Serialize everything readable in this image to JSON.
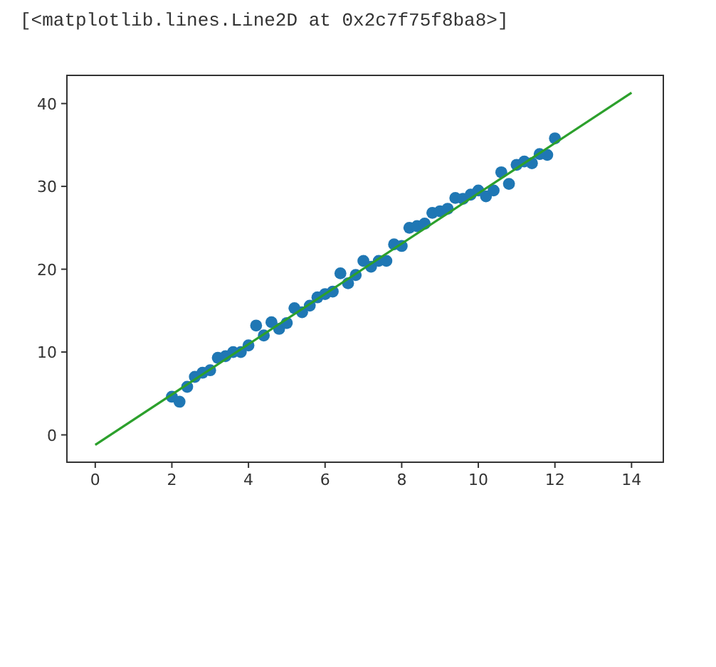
{
  "chart_data": {
    "type": "scatter",
    "annotations": [
      "[<matplotlib.lines.Line2D at 0x2c7f75f8ba8>]"
    ],
    "xlim": [
      -0.74,
      14.83
    ],
    "ylim": [
      -3.3,
      43.4
    ],
    "xticks": [
      0,
      2,
      4,
      6,
      8,
      10,
      12,
      14
    ],
    "yticks": [
      0,
      10,
      20,
      30,
      40
    ],
    "marker": "circle",
    "grid": false,
    "series": [
      {
        "color": "#1f77b4",
        "x": [
          2.0,
          2.2,
          2.4,
          2.6,
          2.8,
          3.0,
          3.2,
          3.4,
          3.6,
          3.8,
          4.0,
          4.2,
          4.4,
          4.6,
          4.8,
          5.0,
          5.2,
          5.4,
          5.6,
          5.8,
          6.0,
          6.2,
          6.4,
          6.6,
          6.8,
          7.0,
          7.2,
          7.4,
          7.6,
          7.8,
          8.0,
          8.2,
          8.4,
          8.6,
          8.8,
          9.0,
          9.2,
          9.4,
          9.6,
          9.8,
          10.0,
          10.2,
          10.4,
          10.6,
          10.8,
          11.0,
          11.2,
          11.4,
          11.6,
          11.8,
          12.0
        ],
        "values": [
          4.6,
          4.0,
          5.8,
          7.0,
          7.5,
          7.8,
          9.3,
          9.5,
          10.0,
          10.0,
          10.8,
          13.2,
          12.0,
          13.6,
          12.8,
          13.5,
          15.3,
          14.8,
          15.6,
          16.6,
          17.0,
          17.3,
          19.5,
          18.3,
          19.3,
          21.0,
          20.3,
          21.0,
          21.0,
          23.0,
          22.8,
          25.0,
          25.2,
          25.5,
          26.8,
          27.0,
          27.3,
          28.6,
          28.5,
          29.0,
          29.5,
          28.8,
          29.5,
          31.7,
          30.3,
          32.6,
          33.0,
          32.8,
          33.9,
          33.8,
          35.8
        ]
      },
      {
        "type": "line",
        "color": "#2ca02c",
        "x": [
          0,
          14
        ],
        "values": [
          -1.2,
          41.3
        ],
        "marker": "none",
        "line_style": "solid"
      }
    ]
  }
}
